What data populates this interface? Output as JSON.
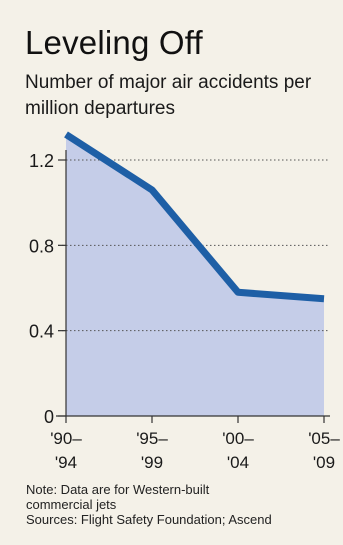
{
  "title": "Leveling Off",
  "subtitle": "Number of major air accidents per million departures",
  "chart_data": {
    "type": "area",
    "title": "Leveling Off",
    "subtitle": "Number of major air accidents per million departures",
    "xlabel": "",
    "ylabel": "",
    "categories": [
      [
        "'90–",
        "'94"
      ],
      [
        "'95–",
        "'99"
      ],
      [
        "'00–",
        "'04"
      ],
      [
        "'05–",
        "'09"
      ]
    ],
    "series": [
      {
        "values": [
          1.32,
          1.06,
          0.58,
          0.55
        ]
      }
    ],
    "yticks": [
      0,
      0.4,
      0.8,
      1.2
    ],
    "ytick_labels": [
      "0",
      "0.4",
      "0.8",
      "1.2"
    ],
    "ylim": [
      0,
      1.36
    ],
    "grid": true,
    "colors": {
      "line": "#1e5fa6",
      "fill": "#c5cde8",
      "grid": "#555555"
    }
  },
  "notes": {
    "note_line1": "Note: Data are for Western-built",
    "note_line2": "commercial jets",
    "sources": "Sources: Flight Safety Foundation; Ascend"
  }
}
